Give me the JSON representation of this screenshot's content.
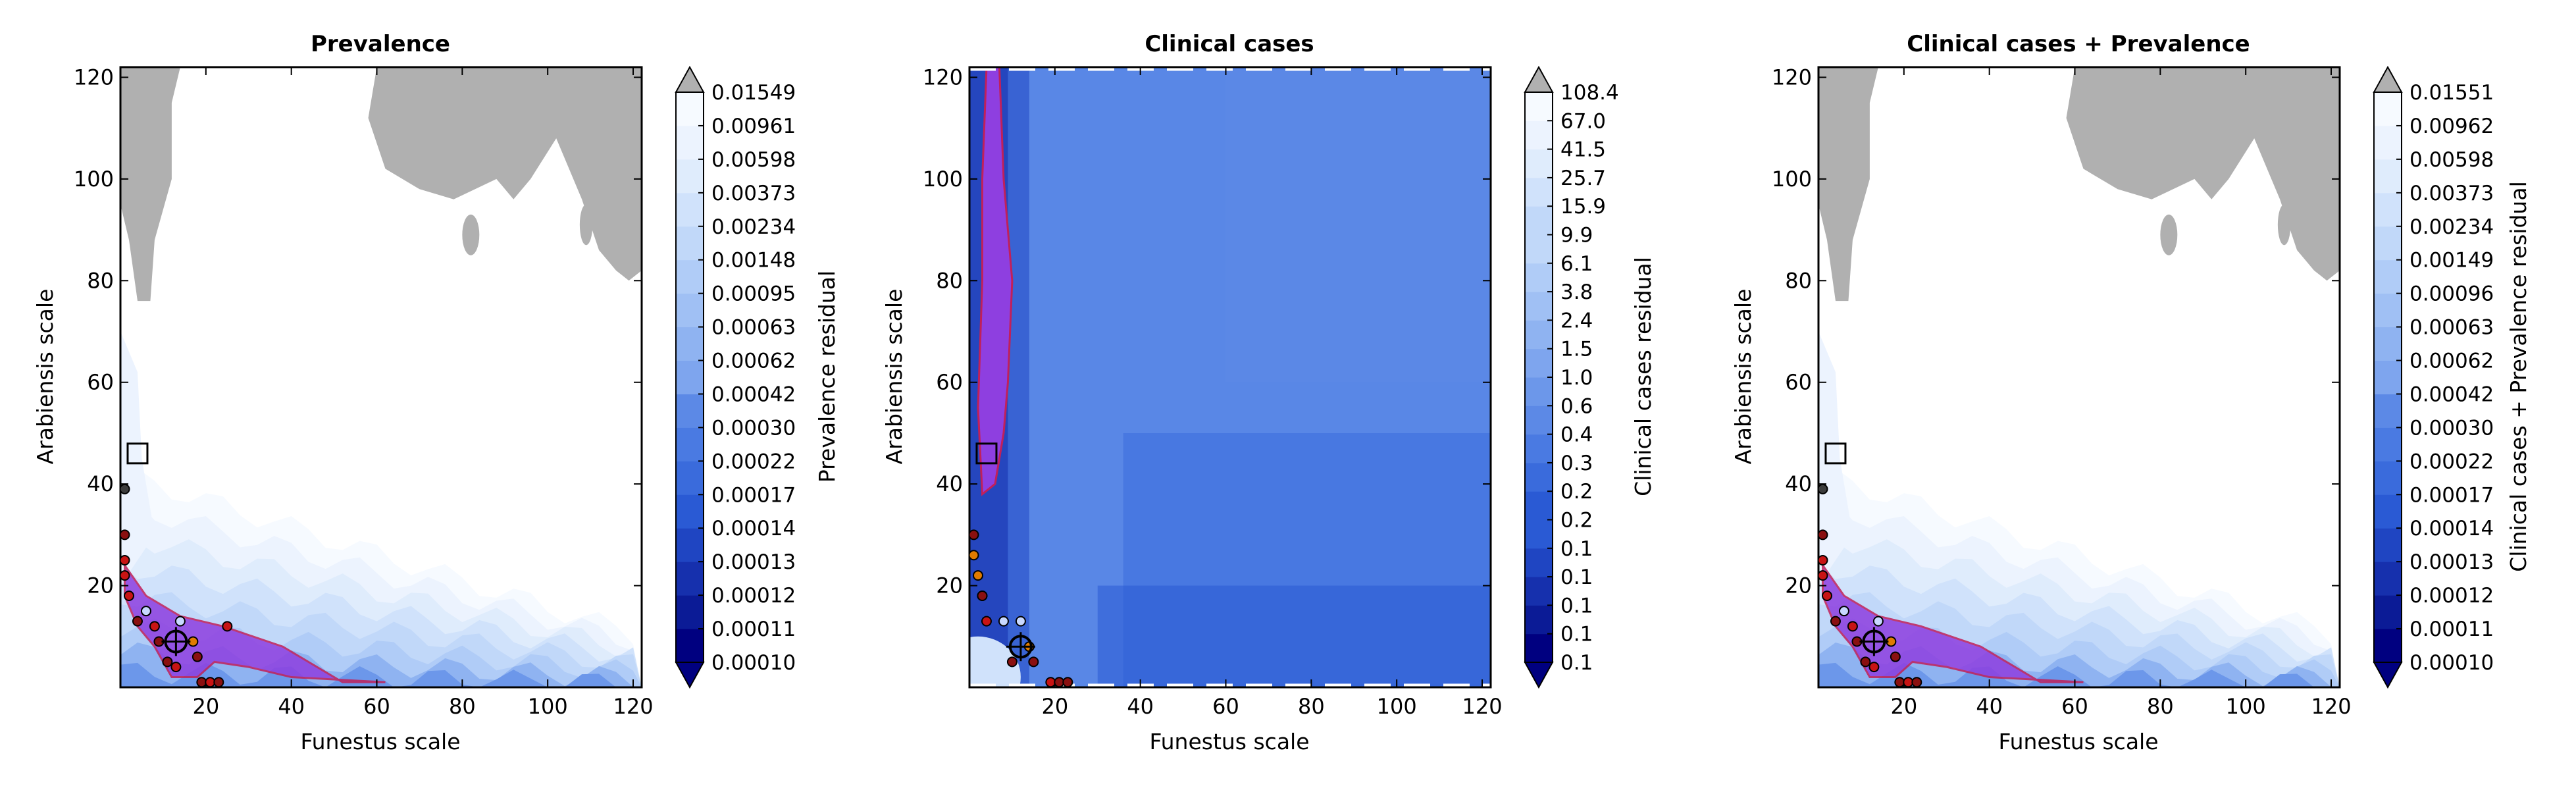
{
  "colors": {
    "ramp": [
      "#000080",
      "#0b1b96",
      "#1630ad",
      "#1f45c2",
      "#2a5ad4",
      "#3a6bdc",
      "#4a7ae2",
      "#5c89e6",
      "#6c97ea",
      "#7ea5ee",
      "#8fb3f1",
      "#a0c0f4",
      "#b0ccf7",
      "#c1d8f9",
      "#d0e2fb",
      "#dfecfc",
      "#ecf3fe",
      "#f6faff"
    ],
    "over": "#b0b0b0",
    "purple": "#8e3fe0",
    "purple_edge": "#c0205a",
    "points": [
      "#c81414",
      "#8a1010",
      "#e07b00",
      "#c8d8ff",
      "#3c3c3c"
    ]
  },
  "chart_data": [
    {
      "type": "contour",
      "title": "Prevalence",
      "xlabel": "Funestus scale",
      "ylabel": "Arabiensis scale",
      "xlim": [
        0,
        122
      ],
      "ylim": [
        0,
        122
      ],
      "xticks": [
        "20",
        "40",
        "60",
        "80",
        "100",
        "120"
      ],
      "yticks": [
        "20",
        "40",
        "60",
        "80",
        "100",
        "120"
      ],
      "colorbar_label": "Prevalence residual",
      "colorbar_levels": [
        "0.00010",
        "0.00011",
        "0.00012",
        "0.00013",
        "0.00014",
        "0.00017",
        "0.00022",
        "0.00030",
        "0.00042",
        "0.00062",
        "0.00063",
        "0.00095",
        "0.00148",
        "0.00234",
        "0.00373",
        "0.00598",
        "0.00961",
        "0.01549"
      ],
      "best_marker": {
        "x": 4,
        "y": 46
      },
      "target_marker": {
        "x": 13,
        "y": 9
      },
      "points": [
        {
          "x": 1,
          "y": 30,
          "c": 1
        },
        {
          "x": 1,
          "y": 25,
          "c": 0
        },
        {
          "x": 1,
          "y": 22,
          "c": 0
        },
        {
          "x": 2,
          "y": 18,
          "c": 0
        },
        {
          "x": 4,
          "y": 13,
          "c": 1
        },
        {
          "x": 8,
          "y": 12,
          "c": 0
        },
        {
          "x": 9,
          "y": 9,
          "c": 1
        },
        {
          "x": 11,
          "y": 5,
          "c": 1
        },
        {
          "x": 13,
          "y": 4,
          "c": 0
        },
        {
          "x": 17,
          "y": 9,
          "c": 2
        },
        {
          "x": 18,
          "y": 6,
          "c": 1
        },
        {
          "x": 19,
          "y": 1,
          "c": 1
        },
        {
          "x": 21,
          "y": 1,
          "c": 0
        },
        {
          "x": 23,
          "y": 1,
          "c": 1
        },
        {
          "x": 14,
          "y": 13,
          "c": 3
        },
        {
          "x": 6,
          "y": 15,
          "c": 3
        },
        {
          "x": 25,
          "y": 12,
          "c": 0
        },
        {
          "x": 1,
          "y": 39,
          "c": 4
        }
      ]
    },
    {
      "type": "contour",
      "title": "Clinical cases",
      "xlabel": "Funestus scale",
      "ylabel": "Arabiensis scale",
      "xlim": [
        0,
        122
      ],
      "ylim": [
        0,
        122
      ],
      "xticks": [
        "20",
        "40",
        "60",
        "80",
        "100",
        "120"
      ],
      "yticks": [
        "20",
        "40",
        "60",
        "80",
        "100",
        "120"
      ],
      "colorbar_label": "Clinical cases residual",
      "colorbar_levels": [
        "0.1",
        "0.1",
        "0.1",
        "0.1",
        "0.1",
        "0.2",
        "0.2",
        "0.3",
        "0.4",
        "0.6",
        "1.0",
        "1.5",
        "2.4",
        "3.8",
        "6.1",
        "9.9",
        "15.9",
        "25.7",
        "41.5",
        "67.0",
        "108.4"
      ],
      "best_marker": {
        "x": 4,
        "y": 46
      },
      "target_marker": {
        "x": 12,
        "y": 8
      },
      "points": [
        {
          "x": 1,
          "y": 30,
          "c": 1
        },
        {
          "x": 1,
          "y": 26,
          "c": 2
        },
        {
          "x": 2,
          "y": 22,
          "c": 2
        },
        {
          "x": 3,
          "y": 18,
          "c": 3
        },
        {
          "x": 3,
          "y": 18,
          "c": 1
        },
        {
          "x": 4,
          "y": 13,
          "c": 0
        },
        {
          "x": 8,
          "y": 13,
          "c": 3
        },
        {
          "x": 12,
          "y": 13,
          "c": 3
        },
        {
          "x": 10,
          "y": 5,
          "c": 1
        },
        {
          "x": 14,
          "y": 8,
          "c": 2
        },
        {
          "x": 15,
          "y": 5,
          "c": 1
        },
        {
          "x": 19,
          "y": 1,
          "c": 0
        },
        {
          "x": 21,
          "y": 1,
          "c": 1
        },
        {
          "x": 23,
          "y": 1,
          "c": 1
        }
      ]
    },
    {
      "type": "contour",
      "title": "Clinical cases + Prevalence",
      "xlabel": "Funestus scale",
      "ylabel": "Arabiensis scale",
      "xlim": [
        0,
        122
      ],
      "ylim": [
        0,
        122
      ],
      "xticks": [
        "20",
        "40",
        "60",
        "80",
        "100",
        "120"
      ],
      "yticks": [
        "20",
        "40",
        "60",
        "80",
        "100",
        "120"
      ],
      "colorbar_label": "Clinical cases + Prevalence residual",
      "colorbar_levels": [
        "0.00010",
        "0.00011",
        "0.00012",
        "0.00013",
        "0.00014",
        "0.00017",
        "0.00022",
        "0.00030",
        "0.00042",
        "0.00062",
        "0.00063",
        "0.00096",
        "0.00149",
        "0.00234",
        "0.00373",
        "0.00598",
        "0.00962",
        "0.01551"
      ],
      "best_marker": {
        "x": 4,
        "y": 46
      },
      "target_marker": {
        "x": 13,
        "y": 9
      },
      "points": [
        {
          "x": 1,
          "y": 30,
          "c": 1
        },
        {
          "x": 1,
          "y": 25,
          "c": 0
        },
        {
          "x": 1,
          "y": 22,
          "c": 0
        },
        {
          "x": 2,
          "y": 18,
          "c": 0
        },
        {
          "x": 4,
          "y": 13,
          "c": 1
        },
        {
          "x": 8,
          "y": 12,
          "c": 0
        },
        {
          "x": 9,
          "y": 9,
          "c": 1
        },
        {
          "x": 11,
          "y": 5,
          "c": 1
        },
        {
          "x": 13,
          "y": 4,
          "c": 0
        },
        {
          "x": 17,
          "y": 9,
          "c": 2
        },
        {
          "x": 18,
          "y": 6,
          "c": 1
        },
        {
          "x": 19,
          "y": 1,
          "c": 1
        },
        {
          "x": 21,
          "y": 1,
          "c": 0
        },
        {
          "x": 23,
          "y": 1,
          "c": 1
        },
        {
          "x": 14,
          "y": 13,
          "c": 3
        },
        {
          "x": 6,
          "y": 15,
          "c": 3
        },
        {
          "x": 1,
          "y": 39,
          "c": 4
        }
      ]
    }
  ]
}
